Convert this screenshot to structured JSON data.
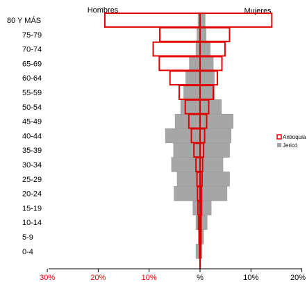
{
  "chart_data": {
    "type": "bar",
    "orientation": "horizontal",
    "subtype": "population-pyramid",
    "side_labels": {
      "left": "Hombres",
      "right": "Mujeres"
    },
    "categories": [
      "80 Y MÁS",
      "75-79",
      "70-74",
      "65-69",
      "60-64",
      "55-59",
      "50-54",
      "45-49",
      "40-44",
      "35-39",
      "30-34",
      "25-29",
      "20-24",
      "15-19",
      "10-14",
      "5-9",
      "0-4"
    ],
    "x_ticks": [
      "30%",
      "20%",
      "10%",
      "%",
      "10%",
      "20%"
    ],
    "x_tick_values": [
      -30,
      -20,
      -10,
      0,
      10,
      20
    ],
    "xlim": [
      -30,
      20
    ],
    "legend_position": "right",
    "series": [
      {
        "name": "Jericó",
        "style": "filled",
        "color": "#a6a6a6",
        "hombres": [
          0.4,
          0.6,
          0.8,
          2.1,
          2.8,
          3.2,
          3.8,
          4.9,
          6.8,
          5.2,
          5.6,
          4.5,
          5.1,
          1.4,
          0.8,
          0.3,
          0.8
        ],
        "mujeres": [
          1.0,
          1.2,
          2.0,
          2.6,
          2.8,
          2.9,
          4.2,
          6.5,
          6.1,
          5.8,
          4.5,
          5.8,
          5.3,
          2.2,
          1.4,
          0.7,
          0.4
        ]
      },
      {
        "name": "Antioquia",
        "style": "outline",
        "color": "#e00000",
        "hombres": [
          18.7,
          7.9,
          9.2,
          8.0,
          5.9,
          4.1,
          2.9,
          2.2,
          1.7,
          1.2,
          0.8,
          0.6,
          0.5,
          0.4,
          0.3,
          0.2,
          0.1
        ],
        "mujeres": [
          14.1,
          5.8,
          4.9,
          4.3,
          3.4,
          2.6,
          1.7,
          1.3,
          0.9,
          0.7,
          0.5,
          0.4,
          0.3,
          0.3,
          0.2,
          0.2,
          0.1
        ]
      }
    ],
    "colors": {
      "tick_labels": "#e00000",
      "zero_tick": "#000000"
    }
  }
}
